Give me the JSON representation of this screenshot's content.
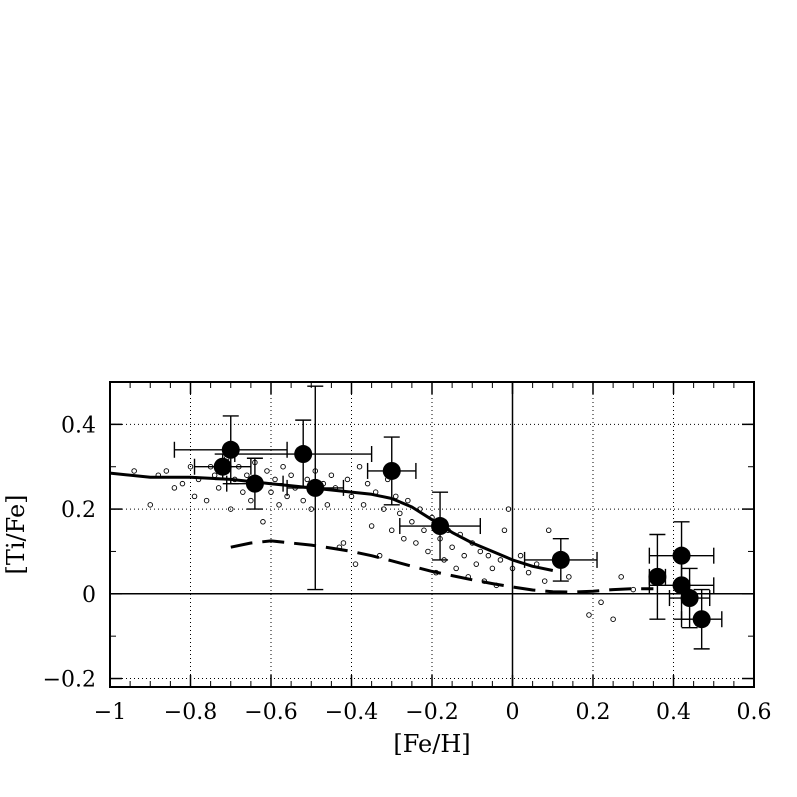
{
  "chart_data": {
    "type": "scatter",
    "title": "",
    "xlabel": "[Fe/H]",
    "ylabel": "[Ti/Fe]",
    "xlim": [
      -1.0,
      0.6
    ],
    "ylim": [
      -0.22,
      0.5
    ],
    "grid": true,
    "x_ticks": [
      -1,
      -0.8,
      -0.6,
      -0.4,
      -0.2,
      0,
      0.2,
      0.4,
      0.6
    ],
    "x_tick_labels": [
      "−1",
      "−0.8",
      "−0.6",
      "−0.4",
      "−0.2",
      "0",
      "0.2",
      "0.4",
      "0.6"
    ],
    "y_ticks": [
      -0.2,
      0,
      0.2,
      0.4
    ],
    "y_tick_labels": [
      "−0.2",
      "0",
      "0.2",
      "0.4"
    ],
    "reference_lines": {
      "x": 0,
      "y": 0
    },
    "measured_points": [
      {
        "x": -0.7,
        "y": 0.34,
        "xerr": 0.14,
        "yerr": 0.08
      },
      {
        "x": -0.72,
        "y": 0.3,
        "xerr": 0.07,
        "yerr": 0.03
      },
      {
        "x": -0.64,
        "y": 0.26,
        "xerr": 0.07,
        "yerr": 0.06
      },
      {
        "x": -0.52,
        "y": 0.33,
        "xerr": 0.17,
        "yerr": 0.08
      },
      {
        "x": -0.49,
        "y": 0.25,
        "xerr": 0.07,
        "yerr": 0.24
      },
      {
        "x": -0.3,
        "y": 0.29,
        "xerr": 0.06,
        "yerr": 0.08
      },
      {
        "x": -0.18,
        "y": 0.16,
        "xerr": 0.1,
        "yerr": 0.08
      },
      {
        "x": 0.12,
        "y": 0.08,
        "xerr": 0.09,
        "yerr": 0.05
      },
      {
        "x": 0.36,
        "y": 0.04,
        "xerr": 0.02,
        "yerr": 0.1
      },
      {
        "x": 0.42,
        "y": 0.09,
        "xerr": 0.08,
        "yerr": 0.08
      },
      {
        "x": 0.42,
        "y": 0.02,
        "xerr": 0.08,
        "yerr": 0.08
      },
      {
        "x": 0.44,
        "y": -0.01,
        "xerr": 0.05,
        "yerr": 0.07
      },
      {
        "x": 0.47,
        "y": -0.06,
        "xerr": 0.05,
        "yerr": 0.07
      }
    ],
    "field_stars": [
      {
        "x": -0.94,
        "y": 0.29
      },
      {
        "x": -0.9,
        "y": 0.21
      },
      {
        "x": -0.88,
        "y": 0.28
      },
      {
        "x": -0.86,
        "y": 0.29
      },
      {
        "x": -0.84,
        "y": 0.25
      },
      {
        "x": -0.82,
        "y": 0.26
      },
      {
        "x": -0.8,
        "y": 0.3
      },
      {
        "x": -0.79,
        "y": 0.23
      },
      {
        "x": -0.78,
        "y": 0.27
      },
      {
        "x": -0.76,
        "y": 0.22
      },
      {
        "x": -0.75,
        "y": 0.3
      },
      {
        "x": -0.74,
        "y": 0.28
      },
      {
        "x": -0.73,
        "y": 0.25
      },
      {
        "x": -0.71,
        "y": 0.32
      },
      {
        "x": -0.7,
        "y": 0.2
      },
      {
        "x": -0.69,
        "y": 0.27
      },
      {
        "x": -0.68,
        "y": 0.3
      },
      {
        "x": -0.67,
        "y": 0.24
      },
      {
        "x": -0.66,
        "y": 0.28
      },
      {
        "x": -0.65,
        "y": 0.22
      },
      {
        "x": -0.64,
        "y": 0.31
      },
      {
        "x": -0.63,
        "y": 0.26
      },
      {
        "x": -0.62,
        "y": 0.17
      },
      {
        "x": -0.61,
        "y": 0.29
      },
      {
        "x": -0.6,
        "y": 0.24
      },
      {
        "x": -0.59,
        "y": 0.27
      },
      {
        "x": -0.58,
        "y": 0.21
      },
      {
        "x": -0.57,
        "y": 0.3
      },
      {
        "x": -0.56,
        "y": 0.23
      },
      {
        "x": -0.55,
        "y": 0.28
      },
      {
        "x": -0.54,
        "y": 0.25
      },
      {
        "x": -0.53,
        "y": 0.32
      },
      {
        "x": -0.52,
        "y": 0.22
      },
      {
        "x": -0.51,
        "y": 0.27
      },
      {
        "x": -0.5,
        "y": 0.2
      },
      {
        "x": -0.49,
        "y": 0.29
      },
      {
        "x": -0.48,
        "y": 0.24
      },
      {
        "x": -0.47,
        "y": 0.26
      },
      {
        "x": -0.46,
        "y": 0.21
      },
      {
        "x": -0.45,
        "y": 0.28
      },
      {
        "x": -0.44,
        "y": 0.25
      },
      {
        "x": -0.43,
        "y": 0.11
      },
      {
        "x": -0.42,
        "y": 0.12
      },
      {
        "x": -0.41,
        "y": 0.27
      },
      {
        "x": -0.4,
        "y": 0.23
      },
      {
        "x": -0.39,
        "y": 0.07
      },
      {
        "x": -0.38,
        "y": 0.3
      },
      {
        "x": -0.37,
        "y": 0.21
      },
      {
        "x": -0.36,
        "y": 0.26
      },
      {
        "x": -0.35,
        "y": 0.16
      },
      {
        "x": -0.34,
        "y": 0.24
      },
      {
        "x": -0.33,
        "y": 0.09
      },
      {
        "x": -0.32,
        "y": 0.2
      },
      {
        "x": -0.31,
        "y": 0.27
      },
      {
        "x": -0.3,
        "y": 0.15
      },
      {
        "x": -0.29,
        "y": 0.23
      },
      {
        "x": -0.28,
        "y": 0.19
      },
      {
        "x": -0.27,
        "y": 0.13
      },
      {
        "x": -0.26,
        "y": 0.22
      },
      {
        "x": -0.25,
        "y": 0.17
      },
      {
        "x": -0.24,
        "y": 0.12
      },
      {
        "x": -0.23,
        "y": 0.2
      },
      {
        "x": -0.22,
        "y": 0.15
      },
      {
        "x": -0.21,
        "y": 0.1
      },
      {
        "x": -0.2,
        "y": 0.18
      },
      {
        "x": -0.19,
        "y": 0.05
      },
      {
        "x": -0.18,
        "y": 0.13
      },
      {
        "x": -0.17,
        "y": 0.08
      },
      {
        "x": -0.16,
        "y": 0.15
      },
      {
        "x": -0.15,
        "y": 0.11
      },
      {
        "x": -0.14,
        "y": 0.06
      },
      {
        "x": -0.13,
        "y": 0.14
      },
      {
        "x": -0.12,
        "y": 0.09
      },
      {
        "x": -0.11,
        "y": 0.04
      },
      {
        "x": -0.1,
        "y": 0.12
      },
      {
        "x": -0.09,
        "y": 0.07
      },
      {
        "x": -0.08,
        "y": 0.1
      },
      {
        "x": -0.07,
        "y": 0.03
      },
      {
        "x": -0.06,
        "y": 0.09
      },
      {
        "x": -0.05,
        "y": 0.06
      },
      {
        "x": -0.04,
        "y": 0.02
      },
      {
        "x": -0.03,
        "y": 0.08
      },
      {
        "x": -0.02,
        "y": 0.15
      },
      {
        "x": -0.01,
        "y": 0.2
      },
      {
        "x": 0.0,
        "y": 0.06
      },
      {
        "x": 0.02,
        "y": 0.09
      },
      {
        "x": 0.04,
        "y": 0.05
      },
      {
        "x": 0.06,
        "y": 0.07
      },
      {
        "x": 0.08,
        "y": 0.03
      },
      {
        "x": 0.09,
        "y": 0.15
      },
      {
        "x": 0.14,
        "y": 0.04
      },
      {
        "x": 0.19,
        "y": -0.05
      },
      {
        "x": 0.22,
        "y": -0.02
      },
      {
        "x": 0.25,
        "y": -0.06
      },
      {
        "x": 0.27,
        "y": 0.04
      },
      {
        "x": 0.3,
        "y": 0.01
      }
    ],
    "model_curves": [
      {
        "style": "solid",
        "x": [
          -1.0,
          -0.9,
          -0.8,
          -0.7,
          -0.6,
          -0.55,
          -0.5,
          -0.45,
          -0.4,
          -0.35,
          -0.3,
          -0.25,
          -0.2,
          -0.15,
          -0.1,
          -0.05,
          0.0,
          0.05,
          0.1
        ],
        "y": [
          0.285,
          0.275,
          0.275,
          0.27,
          0.26,
          0.255,
          0.25,
          0.245,
          0.24,
          0.235,
          0.225,
          0.205,
          0.175,
          0.145,
          0.12,
          0.1,
          0.08,
          0.065,
          0.055
        ]
      },
      {
        "style": "dashed",
        "x": [
          -0.7,
          -0.65,
          -0.6,
          -0.55,
          -0.5,
          -0.45,
          -0.4,
          -0.35,
          -0.3,
          -0.25,
          -0.2,
          -0.15,
          -0.1,
          -0.05,
          0.0,
          0.05,
          0.1,
          0.15,
          0.2,
          0.25,
          0.3,
          0.35
        ],
        "y": [
          0.11,
          0.12,
          0.125,
          0.12,
          0.115,
          0.108,
          0.1,
          0.09,
          0.078,
          0.065,
          0.053,
          0.043,
          0.033,
          0.024,
          0.016,
          0.009,
          0.005,
          0.004,
          0.006,
          0.01,
          0.012,
          0.012
        ]
      }
    ]
  }
}
